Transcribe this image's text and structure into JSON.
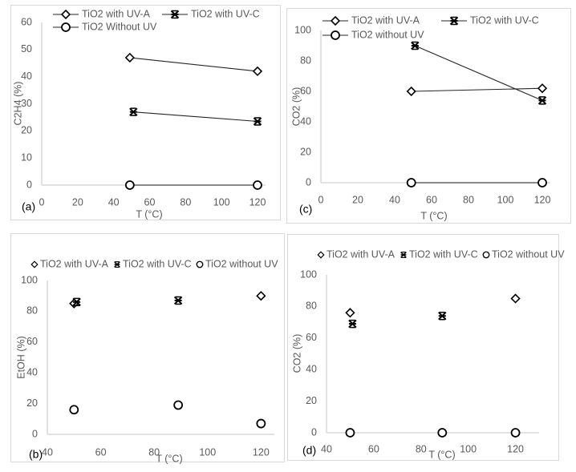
{
  "chart_data": [
    {
      "panel": "(a)",
      "type": "line",
      "xlabel": "T (°C)",
      "ylabel": "C2H4 (%)",
      "xlim": [
        0,
        120
      ],
      "ylim": [
        0,
        60
      ],
      "xticks": [
        0,
        20,
        40,
        60,
        80,
        100,
        120
      ],
      "yticks": [
        0,
        10,
        20,
        30,
        40,
        50,
        60
      ],
      "legend_placement": "top",
      "legend_style": "line",
      "series": [
        {
          "name": "TiO2  with UV-A",
          "marker": "diamond",
          "points": [
            [
              49,
              47
            ],
            [
              120,
              42
            ]
          ]
        },
        {
          "name": "TiO2 with UV-C",
          "marker": "asterisk",
          "points": [
            [
              51,
              27
            ],
            [
              120,
              23.5
            ]
          ]
        },
        {
          "name": "TiO2 Without UV",
          "marker": "circle",
          "points": [
            [
              49,
              0
            ],
            [
              120,
              0
            ]
          ]
        }
      ]
    },
    {
      "panel": "(c)",
      "type": "line",
      "xlabel": "T (°C)",
      "ylabel": "CO2 (%)",
      "xlim": [
        0,
        120
      ],
      "ylim": [
        0,
        100
      ],
      "xticks": [
        0,
        20,
        40,
        60,
        80,
        100,
        120
      ],
      "yticks": [
        0,
        20,
        40,
        60,
        80,
        100
      ],
      "legend_placement": "top",
      "legend_style": "line",
      "series": [
        {
          "name": "TiO2 with UV-A",
          "marker": "diamond",
          "points": [
            [
              49,
              60
            ],
            [
              120,
              62
            ]
          ]
        },
        {
          "name": "TiO2 with UV-C",
          "marker": "asterisk",
          "points": [
            [
              51,
              90
            ],
            [
              120,
              54
            ]
          ]
        },
        {
          "name": "TiO2 without UV",
          "marker": "circle",
          "points": [
            [
              49,
              0
            ],
            [
              120,
              0
            ]
          ]
        }
      ]
    },
    {
      "panel": "(b)",
      "type": "scatter",
      "xlabel": "T (°C)",
      "ylabel": "EtOH (%)",
      "xlim": [
        40,
        125
      ],
      "ylim": [
        0,
        100
      ],
      "xticks": [
        40,
        60,
        80,
        100,
        120
      ],
      "yticks": [
        0,
        20,
        40,
        60,
        80,
        100
      ],
      "legend_placement": "top",
      "legend_style": "marker",
      "series": [
        {
          "name": "TiO2 with UV-A",
          "marker": "diamond",
          "points": [
            [
              50,
              85
            ],
            [
              120,
              90
            ]
          ]
        },
        {
          "name": "TiO2 with UV-C",
          "marker": "asterisk",
          "points": [
            [
              51,
              86
            ],
            [
              89,
              87
            ]
          ]
        },
        {
          "name": "TiO2 without UV",
          "marker": "circle",
          "points": [
            [
              50,
              16
            ],
            [
              89,
              19
            ],
            [
              120,
              7
            ]
          ]
        }
      ]
    },
    {
      "panel": "(d)",
      "type": "scatter",
      "xlabel": "T (°C)",
      "ylabel": "CO2 (%)",
      "xlim": [
        40,
        130
      ],
      "ylim": [
        0,
        100
      ],
      "xticks": [
        40,
        60,
        80,
        100,
        120
      ],
      "yticks": [
        0,
        20,
        40,
        60,
        80,
        100
      ],
      "legend_placement": "top",
      "legend_style": "marker",
      "series": [
        {
          "name": "TiO2 with UV-A",
          "marker": "diamond",
          "points": [
            [
              50,
              76
            ],
            [
              120,
              85
            ]
          ]
        },
        {
          "name": "TiO2 with UV-C",
          "marker": "asterisk",
          "points": [
            [
              51,
              69
            ],
            [
              89,
              74
            ]
          ]
        },
        {
          "name": "TiO2 without UV",
          "marker": "circle",
          "points": [
            [
              50,
              0
            ],
            [
              89,
              0
            ],
            [
              120,
              0
            ]
          ]
        }
      ]
    }
  ],
  "colors": {
    "marker": "#000000",
    "line": "#262626",
    "axis": "#d9d9d9",
    "frame": "#d9d9d9",
    "text": "#595959",
    "panel_label": "#000000"
  }
}
